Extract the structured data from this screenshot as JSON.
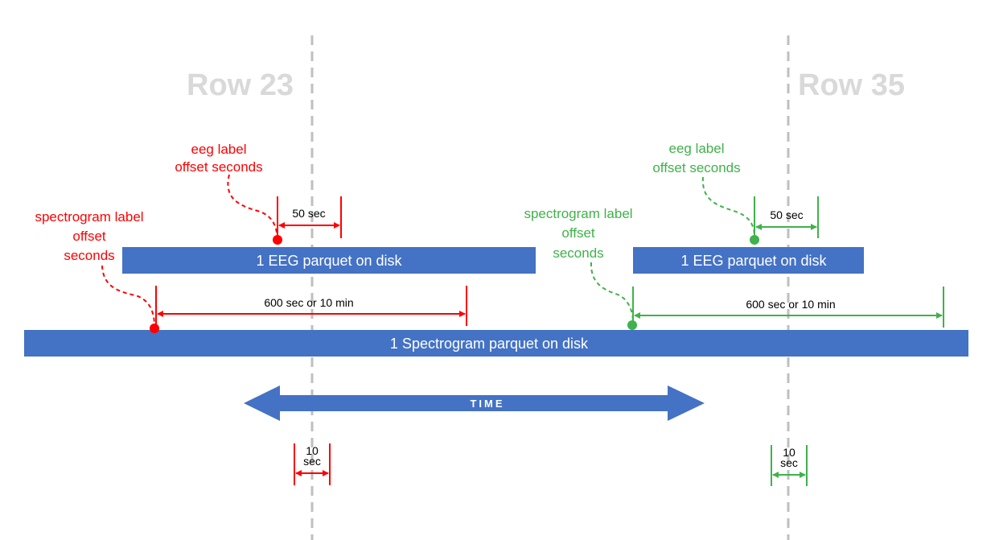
{
  "rows": {
    "left": "Row 23",
    "right": "Row 35"
  },
  "bars": {
    "eeg_left": "1 EEG parquet on disk",
    "eeg_right": "1 EEG parquet on disk",
    "spectrogram": "1 Spectrogram parquet on disk"
  },
  "labels": {
    "eeg_offset_left": [
      "eeg label",
      "offset seconds"
    ],
    "spec_offset_left": [
      "spectrogram label",
      "offset",
      "seconds"
    ],
    "eeg_offset_right": [
      "eeg label",
      "offset seconds"
    ],
    "spec_offset_right": [
      "spectrogram label",
      "offset",
      "seconds"
    ]
  },
  "dimensions": {
    "eeg_left": "50 sec",
    "eeg_right": "50 sec",
    "spec_left": "600 sec or 10 min",
    "spec_right": "600 sec or 10 min",
    "ten_left": [
      "10",
      "sec"
    ],
    "ten_right": [
      "10",
      "sec"
    ]
  },
  "time_arrow": "TIME",
  "colors": {
    "bar": "#4472c4",
    "red": "#ff0000",
    "green": "#3fb24a",
    "guide": "#bfbfbf",
    "row_label": "#d9d9d9"
  }
}
